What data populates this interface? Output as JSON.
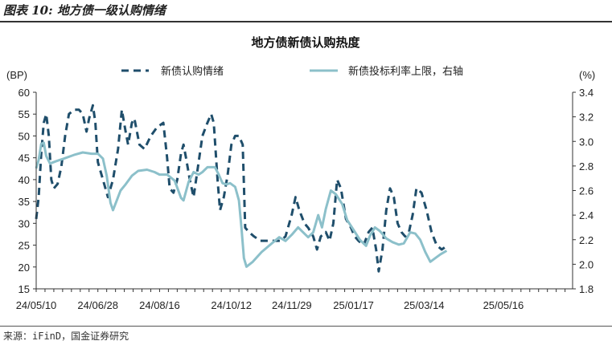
{
  "figure": {
    "caption": "图表 10: 地方债一级认购情绪",
    "source": "来源：iFinD，国金证券研究"
  },
  "chart_data": {
    "type": "line",
    "title": "地方债新债认购热度",
    "left_axis_unit": "(BP)",
    "right_axis_unit": "(%)",
    "left_ylim": [
      15,
      60
    ],
    "right_ylim": [
      1.8,
      3.4
    ],
    "left_ticks": [
      15,
      20,
      25,
      30,
      35,
      40,
      45,
      50,
      55,
      60
    ],
    "right_ticks": [
      "1.8",
      "2.0",
      "2.2",
      "2.4",
      "2.6",
      "2.8",
      "3.0",
      "3.2",
      "3.4"
    ],
    "x_range": [
      "2024-05-10",
      "2025-07-10"
    ],
    "x_ticks": [
      "24/05/10",
      "24/06/28",
      "24/08/16",
      "24/10/12",
      "24/11/29",
      "25/01/17",
      "25/03/14",
      "25/05/16"
    ],
    "legend_position": "top",
    "series": [
      {
        "name": "新债认购情绪",
        "axis": "left",
        "style": "dashed",
        "color": "#1f4e6b",
        "points": [
          [
            "2024-05-10",
            31
          ],
          [
            "2024-05-12",
            36
          ],
          [
            "2024-05-14",
            46
          ],
          [
            "2024-05-16",
            53
          ],
          [
            "2024-05-18",
            55
          ],
          [
            "2024-05-20",
            50
          ],
          [
            "2024-05-22",
            40
          ],
          [
            "2024-05-24",
            38
          ],
          [
            "2024-05-27",
            39
          ],
          [
            "2024-05-30",
            43
          ],
          [
            "2024-06-02",
            50
          ],
          [
            "2024-06-05",
            55
          ],
          [
            "2024-06-09",
            56
          ],
          [
            "2024-06-13",
            56
          ],
          [
            "2024-06-16",
            55
          ],
          [
            "2024-06-19",
            51
          ],
          [
            "2024-06-21",
            54
          ],
          [
            "2024-06-24",
            57
          ],
          [
            "2024-06-26",
            53
          ],
          [
            "2024-06-28",
            44
          ],
          [
            "2024-07-02",
            40
          ],
          [
            "2024-07-06",
            36
          ],
          [
            "2024-07-10",
            40
          ],
          [
            "2024-07-14",
            47
          ],
          [
            "2024-07-17",
            56
          ],
          [
            "2024-07-20",
            51
          ],
          [
            "2024-07-22",
            48
          ],
          [
            "2024-07-25",
            53
          ],
          [
            "2024-07-27",
            54
          ],
          [
            "2024-07-31",
            48
          ],
          [
            "2024-08-04",
            47
          ],
          [
            "2024-08-09",
            50
          ],
          [
            "2024-08-14",
            52
          ],
          [
            "2024-08-19",
            53
          ],
          [
            "2024-08-22",
            45
          ],
          [
            "2024-08-24",
            38
          ],
          [
            "2024-08-27",
            37
          ],
          [
            "2024-08-30",
            40
          ],
          [
            "2024-09-02",
            46
          ],
          [
            "2024-09-04",
            48
          ],
          [
            "2024-09-06",
            45
          ],
          [
            "2024-09-09",
            40
          ],
          [
            "2024-09-12",
            36
          ],
          [
            "2024-09-16",
            44
          ],
          [
            "2024-09-19",
            50
          ],
          [
            "2024-09-23",
            53
          ],
          [
            "2024-09-26",
            55
          ],
          [
            "2024-09-28",
            53
          ],
          [
            "2024-10-01",
            40
          ],
          [
            "2024-10-03",
            33
          ],
          [
            "2024-10-06",
            36
          ],
          [
            "2024-10-09",
            41
          ],
          [
            "2024-10-12",
            48
          ],
          [
            "2024-10-15",
            50
          ],
          [
            "2024-10-18",
            50
          ],
          [
            "2024-10-21",
            48
          ],
          [
            "2024-10-23",
            29
          ],
          [
            "2024-10-26",
            28
          ],
          [
            "2024-10-30",
            27
          ],
          [
            "2024-11-04",
            26
          ],
          [
            "2024-11-10",
            26
          ],
          [
            "2024-11-15",
            26
          ],
          [
            "2024-11-20",
            26
          ],
          [
            "2024-11-24",
            27
          ],
          [
            "2024-11-29",
            32
          ],
          [
            "2024-12-02",
            36
          ],
          [
            "2024-12-05",
            33
          ],
          [
            "2024-12-09",
            30
          ],
          [
            "2024-12-12",
            29
          ],
          [
            "2024-12-16",
            27
          ],
          [
            "2024-12-19",
            24
          ],
          [
            "2024-12-22",
            27
          ],
          [
            "2024-12-26",
            28
          ],
          [
            "2024-12-29",
            26
          ],
          [
            "2025-01-01",
            30
          ],
          [
            "2025-01-04",
            40
          ],
          [
            "2025-01-07",
            38
          ],
          [
            "2025-01-11",
            31
          ],
          [
            "2025-01-15",
            29
          ],
          [
            "2025-01-18",
            27
          ],
          [
            "2025-01-21",
            26
          ],
          [
            "2025-01-25",
            25
          ],
          [
            "2025-01-29",
            28
          ],
          [
            "2025-02-01",
            29
          ],
          [
            "2025-02-04",
            24
          ],
          [
            "2025-02-06",
            19
          ],
          [
            "2025-02-09",
            24
          ],
          [
            "2025-02-12",
            33
          ],
          [
            "2025-02-15",
            38
          ],
          [
            "2025-02-18",
            36
          ],
          [
            "2025-02-21",
            30
          ],
          [
            "2025-02-24",
            28
          ],
          [
            "2025-02-27",
            27
          ],
          [
            "2025-03-02",
            28
          ],
          [
            "2025-03-05",
            32
          ],
          [
            "2025-03-08",
            38
          ],
          [
            "2025-03-12",
            37
          ],
          [
            "2025-03-16",
            33
          ],
          [
            "2025-03-20",
            28
          ],
          [
            "2025-03-24",
            25
          ],
          [
            "2025-03-28",
            24
          ],
          [
            "2025-04-02",
            25
          ]
        ]
      },
      {
        "name": "新债投标利率上限，右轴",
        "axis": "right",
        "style": "solid",
        "color": "#8cc0ca",
        "points": [
          [
            "2024-05-10",
            2.78
          ],
          [
            "2024-05-12",
            2.85
          ],
          [
            "2024-05-14",
            2.98
          ],
          [
            "2024-05-16",
            2.99
          ],
          [
            "2024-05-18",
            2.88
          ],
          [
            "2024-05-21",
            2.82
          ],
          [
            "2024-05-26",
            2.84
          ],
          [
            "2024-06-01",
            2.86
          ],
          [
            "2024-06-09",
            2.89
          ],
          [
            "2024-06-16",
            2.91
          ],
          [
            "2024-06-23",
            2.9
          ],
          [
            "2024-06-28",
            2.9
          ],
          [
            "2024-07-02",
            2.86
          ],
          [
            "2024-07-05",
            2.72
          ],
          [
            "2024-07-08",
            2.5
          ],
          [
            "2024-07-10",
            2.44
          ],
          [
            "2024-07-13",
            2.52
          ],
          [
            "2024-07-16",
            2.6
          ],
          [
            "2024-07-20",
            2.65
          ],
          [
            "2024-07-25",
            2.72
          ],
          [
            "2024-07-30",
            2.76
          ],
          [
            "2024-08-06",
            2.77
          ],
          [
            "2024-08-12",
            2.75
          ],
          [
            "2024-08-16",
            2.73
          ],
          [
            "2024-08-22",
            2.73
          ],
          [
            "2024-08-28",
            2.68
          ],
          [
            "2024-09-02",
            2.54
          ],
          [
            "2024-09-04",
            2.52
          ],
          [
            "2024-09-08",
            2.67
          ],
          [
            "2024-09-12",
            2.75
          ],
          [
            "2024-09-16",
            2.73
          ],
          [
            "2024-09-19",
            2.75
          ],
          [
            "2024-09-23",
            2.79
          ],
          [
            "2024-09-26",
            2.79
          ],
          [
            "2024-09-29",
            2.79
          ],
          [
            "2024-10-02",
            2.73
          ],
          [
            "2024-10-05",
            2.66
          ],
          [
            "2024-10-08",
            2.65
          ],
          [
            "2024-10-11",
            2.66
          ],
          [
            "2024-10-15",
            2.63
          ],
          [
            "2024-10-18",
            2.52
          ],
          [
            "2024-10-20",
            2.3
          ],
          [
            "2024-10-22",
            2.05
          ],
          [
            "2024-10-24",
            1.98
          ],
          [
            "2024-10-29",
            2.02
          ],
          [
            "2024-11-05",
            2.1
          ],
          [
            "2024-11-12",
            2.16
          ],
          [
            "2024-11-19",
            2.22
          ],
          [
            "2024-11-24",
            2.19
          ],
          [
            "2024-11-29",
            2.24
          ],
          [
            "2024-12-04",
            2.3
          ],
          [
            "2024-12-08",
            2.26
          ],
          [
            "2024-12-12",
            2.22
          ],
          [
            "2024-12-16",
            2.26
          ],
          [
            "2024-12-20",
            2.4
          ],
          [
            "2024-12-23",
            2.3
          ],
          [
            "2024-12-26",
            2.45
          ],
          [
            "2024-12-30",
            2.6
          ],
          [
            "2025-01-03",
            2.57
          ],
          [
            "2025-01-08",
            2.49
          ],
          [
            "2025-01-12",
            2.36
          ],
          [
            "2025-01-17",
            2.28
          ],
          [
            "2025-01-22",
            2.2
          ],
          [
            "2025-01-27",
            2.15
          ],
          [
            "2025-01-30",
            2.23
          ],
          [
            "2025-02-03",
            2.3
          ],
          [
            "2025-02-07",
            2.27
          ],
          [
            "2025-02-12",
            2.21
          ],
          [
            "2025-02-17",
            2.18
          ],
          [
            "2025-02-22",
            2.16
          ],
          [
            "2025-02-26",
            2.17
          ],
          [
            "2025-03-03",
            2.26
          ],
          [
            "2025-03-07",
            2.25
          ],
          [
            "2025-03-11",
            2.2
          ],
          [
            "2025-03-15",
            2.1
          ],
          [
            "2025-03-19",
            2.02
          ],
          [
            "2025-03-23",
            2.05
          ],
          [
            "2025-03-27",
            2.08
          ],
          [
            "2025-04-01",
            2.11
          ]
        ]
      }
    ]
  }
}
